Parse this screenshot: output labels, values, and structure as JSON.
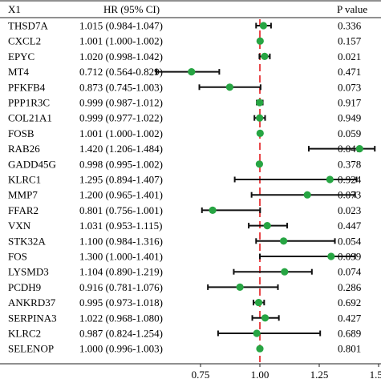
{
  "chart_data": {
    "type": "forest",
    "columns": {
      "label": "X1",
      "hr": "HR (95% CI)",
      "p": "P value"
    },
    "rows": [
      {
        "gene": "THSD7A",
        "hr_text": "1.015 (0.984-1.047)",
        "hr": 1.015,
        "lo": 0.984,
        "hi": 1.047,
        "p": "0.336"
      },
      {
        "gene": "CXCL2",
        "hr_text": "1.001 (1.000-1.002)",
        "hr": 1.001,
        "lo": 1.0,
        "hi": 1.002,
        "p": "0.157"
      },
      {
        "gene": "EPYC",
        "hr_text": "1.020 (0.998-1.042)",
        "hr": 1.02,
        "lo": 0.998,
        "hi": 1.042,
        "p": "0.021"
      },
      {
        "gene": "MT4",
        "hr_text": "0.712 (0.564-0.829)",
        "hr": 0.712,
        "lo": 0.564,
        "hi": 0.829,
        "p": "0.471"
      },
      {
        "gene": "PFKFB4",
        "hr_text": "0.873 (0.745-1.003)",
        "hr": 0.873,
        "lo": 0.745,
        "hi": 1.003,
        "p": "0.073"
      },
      {
        "gene": "PPP1R3C",
        "hr_text": "0.999 (0.987-1.012)",
        "hr": 0.999,
        "lo": 0.987,
        "hi": 1.012,
        "p": "0.917"
      },
      {
        "gene": "COL21A1",
        "hr_text": "0.999 (0.977-1.022)",
        "hr": 0.999,
        "lo": 0.977,
        "hi": 1.022,
        "p": "0.949"
      },
      {
        "gene": "FOSB",
        "hr_text": "1.001 (1.000-1.002)",
        "hr": 1.001,
        "lo": 1.0,
        "hi": 1.002,
        "p": "0.059"
      },
      {
        "gene": "RAB26",
        "hr_text": "1.420 (1.206-1.484)",
        "hr": 1.42,
        "lo": 1.206,
        "hi": 1.484,
        "p": "0.041"
      },
      {
        "gene": "GADD45G",
        "hr_text": "0.998 (0.995-1.002)",
        "hr": 0.998,
        "lo": 0.995,
        "hi": 1.002,
        "p": "0.378"
      },
      {
        "gene": "KLRC1",
        "hr_text": "1.295 (0.894-1.407)",
        "hr": 1.295,
        "lo": 0.894,
        "hi": 1.407,
        "p": "0.924"
      },
      {
        "gene": "MMP7",
        "hr_text": "1.200 (0.965-1.401)",
        "hr": 1.2,
        "lo": 0.965,
        "hi": 1.401,
        "p": "0.073"
      },
      {
        "gene": "FFAR2",
        "hr_text": "0.801 (0.756-1.001)",
        "hr": 0.801,
        "lo": 0.756,
        "hi": 1.001,
        "p": "0.023"
      },
      {
        "gene": "VXN",
        "hr_text": "1.031 (0.953-1.115)",
        "hr": 1.031,
        "lo": 0.953,
        "hi": 1.115,
        "p": "0.447"
      },
      {
        "gene": "STK32A",
        "hr_text": "1.100 (0.984-1.316)",
        "hr": 1.1,
        "lo": 0.984,
        "hi": 1.316,
        "p": "0.054"
      },
      {
        "gene": "FOS",
        "hr_text": "1.300 (1.000-1.401)",
        "hr": 1.3,
        "lo": 1.0,
        "hi": 1.401,
        "p": "0.099"
      },
      {
        "gene": "LYSMD3",
        "hr_text": "1.104 (0.890-1.219)",
        "hr": 1.104,
        "lo": 0.89,
        "hi": 1.219,
        "p": "0.074"
      },
      {
        "gene": "PCDH9",
        "hr_text": "0.916 (0.781-1.076)",
        "hr": 0.916,
        "lo": 0.781,
        "hi": 1.076,
        "p": "0.286"
      },
      {
        "gene": "ANKRD37",
        "hr_text": "0.995 (0.973-1.018)",
        "hr": 0.995,
        "lo": 0.973,
        "hi": 1.018,
        "p": "0.692"
      },
      {
        "gene": "SERPINA3",
        "hr_text": "1.022 (0.968-1.080)",
        "hr": 1.022,
        "lo": 0.968,
        "hi": 1.08,
        "p": "0.427"
      },
      {
        "gene": "KLRC2",
        "hr_text": "0.987 (0.824-1.254)",
        "hr": 0.987,
        "lo": 0.824,
        "hi": 1.254,
        "p": "0.689"
      },
      {
        "gene": "SELENOP",
        "hr_text": "1.000 (0.996-1.003)",
        "hr": 1.0,
        "lo": 0.996,
        "hi": 1.003,
        "p": "0.801"
      }
    ],
    "x_ticks": [
      0.75,
      1.0,
      1.25,
      1.5
    ],
    "x_tick_labels": [
      "0.75",
      "1.00",
      "1.25",
      "1.50"
    ],
    "xlim": [
      0.5,
      1.6
    ],
    "reference_line": 1.0,
    "colors": {
      "point": "#27a543",
      "reference": "#e8484a",
      "ci": "#111111",
      "rule": "#222222"
    }
  }
}
